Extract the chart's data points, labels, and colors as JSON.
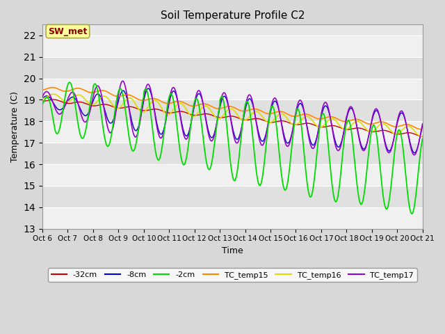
{
  "title": "Soil Temperature Profile C2",
  "xlabel": "Time",
  "ylabel": "Temperature (C)",
  "ylim": [
    13.0,
    22.5
  ],
  "yticks": [
    13.0,
    14.0,
    15.0,
    16.0,
    17.0,
    18.0,
    19.0,
    20.0,
    21.0,
    22.0
  ],
  "xlim": [
    0,
    15
  ],
  "colors": {
    "neg32cm": "#cc0000",
    "neg8cm": "#0000cc",
    "neg2cm": "#00dd00",
    "TC_temp15": "#ff8800",
    "TC_temp16": "#dddd00",
    "TC_temp17": "#9900cc"
  },
  "legend_labels": [
    "-32cm",
    "-8cm",
    "-2cm",
    "TC_temp15",
    "TC_temp16",
    "TC_temp17"
  ],
  "fig_bg_color": "#d8d8d8",
  "plot_bg_color": "#e8e8e8",
  "band_color_light": "#f0f0f0",
  "band_color_dark": "#e0e0e0",
  "grid_color": "#ffffff",
  "annotation_text": "SW_met",
  "annotation_color": "#880000",
  "annotation_bg": "#ffff99",
  "annotation_border": "#aaaa44"
}
